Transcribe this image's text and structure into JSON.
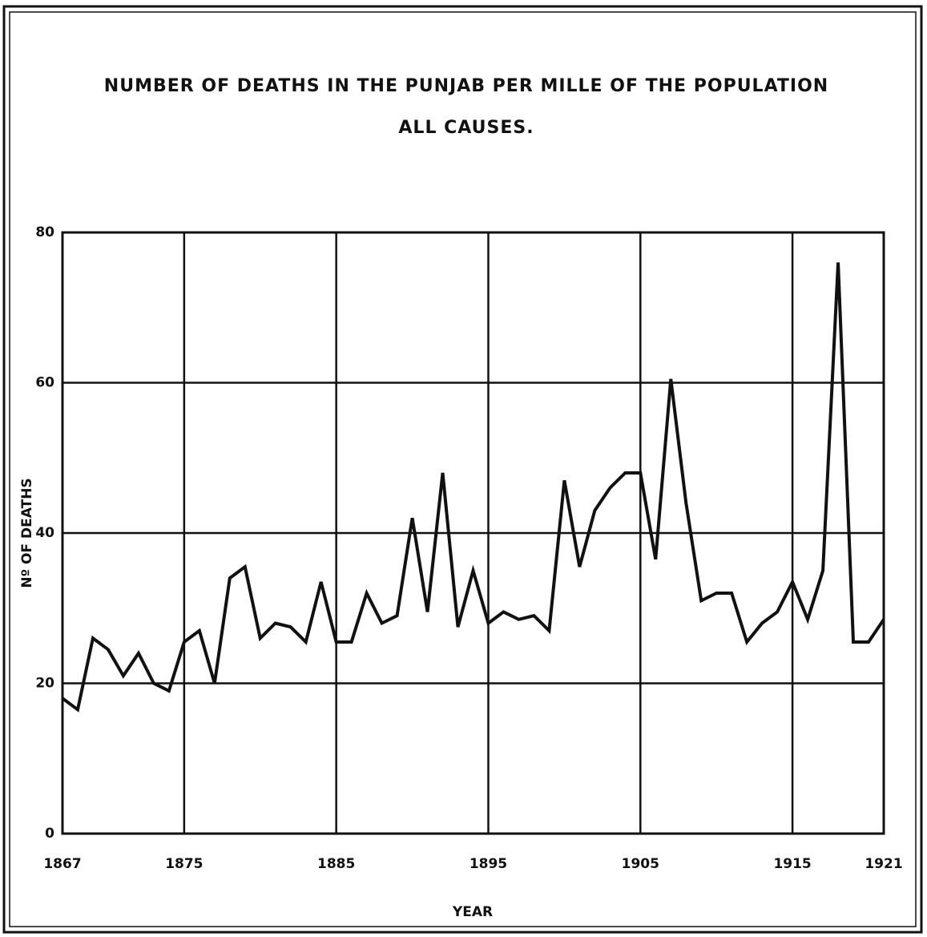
{
  "chart_data": {
    "type": "line",
    "title": "NUMBER OF DEATHS IN THE PUNJAB PER MILLE OF THE POPULATION",
    "subtitle": "ALL CAUSES.",
    "x_label": "YEAR",
    "y_label": "Nº OF DEATHS",
    "x": [
      1867,
      1868,
      1869,
      1870,
      1871,
      1872,
      1873,
      1874,
      1875,
      1876,
      1877,
      1878,
      1879,
      1880,
      1881,
      1882,
      1883,
      1884,
      1885,
      1886,
      1887,
      1888,
      1889,
      1890,
      1891,
      1892,
      1893,
      1894,
      1895,
      1896,
      1897,
      1898,
      1899,
      1900,
      1901,
      1902,
      1903,
      1904,
      1905,
      1906,
      1907,
      1908,
      1909,
      1910,
      1911,
      1912,
      1913,
      1914,
      1915,
      1916,
      1917,
      1918,
      1919,
      1920,
      1921
    ],
    "series": [
      {
        "name": "Deaths per mille",
        "color": "#111111",
        "values": [
          18,
          16.5,
          26,
          24.5,
          21,
          24,
          20,
          19,
          25.5,
          27,
          20,
          34,
          35.5,
          26,
          28,
          27.5,
          25.5,
          33.5,
          25.5,
          25.5,
          32,
          28,
          29,
          42,
          29.5,
          48,
          27.5,
          35,
          28,
          29.5,
          28.5,
          29,
          27,
          47,
          35.5,
          43,
          46,
          48,
          48,
          36.5,
          60.5,
          44,
          31,
          32,
          32,
          25.5,
          28,
          29.5,
          33.5,
          28.5,
          35,
          76,
          25.5,
          25.5,
          28.5
        ]
      }
    ],
    "xlim": [
      1867,
      1921
    ],
    "xticks": [
      1867,
      1875,
      1885,
      1895,
      1905,
      1915,
      1921
    ],
    "ylim": [
      0,
      80
    ],
    "yticks": [
      0,
      20,
      40,
      60,
      80
    ],
    "grid": true
  }
}
